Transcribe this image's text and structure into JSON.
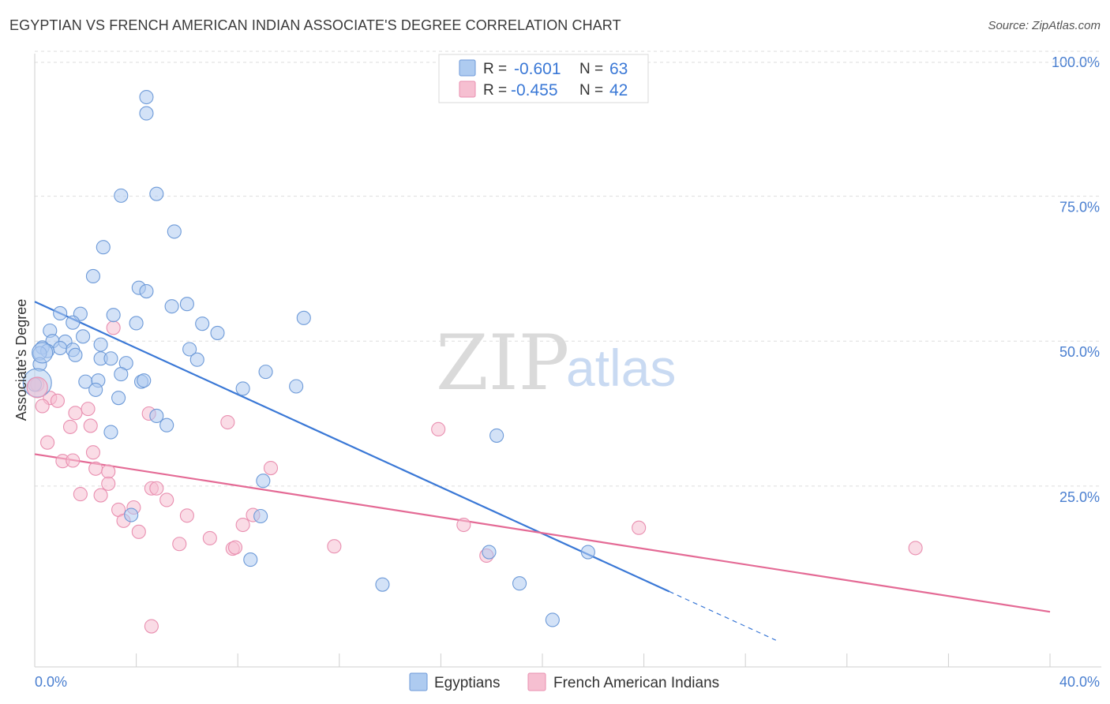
{
  "header": {
    "title": "EGYPTIAN VS FRENCH AMERICAN INDIAN ASSOCIATE'S DEGREE CORRELATION CHART",
    "source": "Source: ZipAtlas.com"
  },
  "legend_top": {
    "r_label": "R =",
    "n_label": "N =",
    "rows": [
      {
        "r": "-0.601",
        "n": "63"
      },
      {
        "r": "-0.455",
        "n": "42"
      }
    ]
  },
  "watermark": {
    "zip": "ZIP",
    "atlas": "atlas"
  },
  "colors": {
    "blue": "#3a78d6",
    "blue_fill": "#aecbf0",
    "blue_stroke": "#6d9ad8",
    "pink": "#e46a95",
    "pink_fill": "#f6bfd1",
    "pink_stroke": "#e98fb0",
    "tick": "#4a7fd0",
    "grid": "#dddddd"
  },
  "chart_data": {
    "type": "scatter",
    "title": "EGYPTIAN VS FRENCH AMERICAN INDIAN ASSOCIATE'S DEGREE CORRELATION CHART",
    "xlabel": "",
    "ylabel": "Associate's Degree",
    "xlim": [
      0,
      40
    ],
    "ylim": [
      0,
      100
    ],
    "x_tick_labels": [
      "0.0%",
      "40.0%"
    ],
    "y_ticks": [
      25,
      50,
      75,
      100
    ],
    "y_tick_labels": [
      "25.0%",
      "50.0%",
      "75.0%",
      "100.0%"
    ],
    "grid": true,
    "legend_position": "bottom-center",
    "series": [
      {
        "name": "Egyptians",
        "r": -0.601,
        "n": 63,
        "trend": {
          "x0": 0,
          "y0": 56.8,
          "x1": 25,
          "y1": 6.8,
          "dash_to_x": 29.2
        },
        "points": [
          [
            4.4,
            92.1
          ],
          [
            4.4,
            89.3
          ],
          [
            4.8,
            75.4
          ],
          [
            3.4,
            75.1
          ],
          [
            5.5,
            68.9
          ],
          [
            2.7,
            66.2
          ],
          [
            2.3,
            61.2
          ],
          [
            4.1,
            59.2
          ],
          [
            4.4,
            58.6
          ],
          [
            6.0,
            56.4
          ],
          [
            5.4,
            56.0
          ],
          [
            1.0,
            54.8
          ],
          [
            1.8,
            54.7
          ],
          [
            3.1,
            54.5
          ],
          [
            10.6,
            54.0
          ],
          [
            1.5,
            53.2
          ],
          [
            4.0,
            53.1
          ],
          [
            6.6,
            53.0
          ],
          [
            0.6,
            51.8
          ],
          [
            1.9,
            50.8
          ],
          [
            7.2,
            51.4
          ],
          [
            0.7,
            50.0
          ],
          [
            1.2,
            49.9
          ],
          [
            2.6,
            49.4
          ],
          [
            0.3,
            48.9
          ],
          [
            1.0,
            48.8
          ],
          [
            6.1,
            48.6
          ],
          [
            1.5,
            48.5
          ],
          [
            0.5,
            48.3
          ],
          [
            0.2,
            47.9
          ],
          [
            1.6,
            47.6
          ],
          [
            2.6,
            47.0
          ],
          [
            3.0,
            47.0
          ],
          [
            6.4,
            46.8
          ],
          [
            3.6,
            46.2
          ],
          [
            0.2,
            46.0
          ],
          [
            9.1,
            44.7
          ],
          [
            3.4,
            44.3
          ],
          [
            4.2,
            43.0
          ],
          [
            4.3,
            43.2
          ],
          [
            2.0,
            43.0
          ],
          [
            2.5,
            43.2
          ],
          [
            10.3,
            42.2
          ],
          [
            8.2,
            41.8
          ],
          [
            2.4,
            41.6
          ],
          [
            0.0,
            42.5
          ],
          [
            3.3,
            40.2
          ],
          [
            4.8,
            37.1
          ],
          [
            5.2,
            35.5
          ],
          [
            3.0,
            34.3
          ],
          [
            18.2,
            33.7
          ],
          [
            9.0,
            25.9
          ],
          [
            3.8,
            20.0
          ],
          [
            8.9,
            19.8
          ],
          [
            17.9,
            13.6
          ],
          [
            21.8,
            13.6
          ],
          [
            8.5,
            12.3
          ],
          [
            13.7,
            8.0
          ],
          [
            19.1,
            8.2
          ],
          [
            20.4,
            1.9
          ]
        ]
      },
      {
        "name": "French American Indians",
        "r": -0.455,
        "n": 42,
        "trend": {
          "x0": 0,
          "y0": 30.5,
          "x1": 40,
          "y1": 3.3
        },
        "points": [
          [
            3.1,
            52.3
          ],
          [
            0.1,
            42.5
          ],
          [
            0.6,
            40.2
          ],
          [
            0.3,
            38.8
          ],
          [
            0.9,
            39.7
          ],
          [
            1.4,
            35.2
          ],
          [
            2.1,
            38.3
          ],
          [
            4.5,
            37.5
          ],
          [
            1.6,
            37.6
          ],
          [
            7.6,
            36.0
          ],
          [
            2.2,
            35.4
          ],
          [
            0.5,
            32.5
          ],
          [
            15.9,
            34.8
          ],
          [
            1.1,
            29.3
          ],
          [
            2.3,
            30.8
          ],
          [
            1.5,
            29.4
          ],
          [
            2.4,
            28.0
          ],
          [
            2.9,
            27.5
          ],
          [
            9.3,
            28.1
          ],
          [
            2.9,
            25.4
          ],
          [
            4.6,
            24.6
          ],
          [
            4.8,
            24.6
          ],
          [
            1.8,
            23.6
          ],
          [
            2.6,
            23.4
          ],
          [
            5.2,
            22.6
          ],
          [
            3.3,
            20.9
          ],
          [
            3.9,
            21.3
          ],
          [
            6.0,
            19.9
          ],
          [
            8.6,
            20.0
          ],
          [
            3.5,
            19.0
          ],
          [
            8.2,
            18.3
          ],
          [
            16.9,
            18.3
          ],
          [
            23.8,
            17.8
          ],
          [
            4.1,
            17.1
          ],
          [
            6.9,
            16.0
          ],
          [
            5.7,
            15.0
          ],
          [
            11.8,
            14.6
          ],
          [
            7.8,
            14.2
          ],
          [
            7.9,
            14.4
          ],
          [
            17.8,
            13.0
          ],
          [
            34.7,
            14.3
          ],
          [
            4.6,
            0.8
          ]
        ]
      }
    ]
  }
}
